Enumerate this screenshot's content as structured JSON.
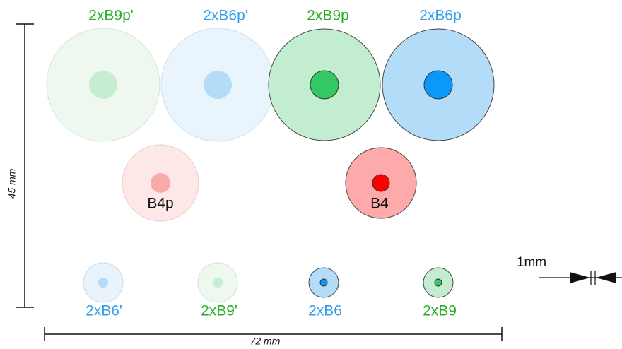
{
  "nodes": [
    {
      "label": "2xB9p'"
    },
    {
      "label": "2xB6p'"
    },
    {
      "label": "2xB9p"
    },
    {
      "label": "2xB6p"
    },
    {
      "label": "B4p"
    },
    {
      "label": "B4"
    },
    {
      "label": "2xB6'"
    },
    {
      "label": "2xB9'"
    },
    {
      "label": "2xB6"
    },
    {
      "label": "2xB9"
    }
  ],
  "scale": {
    "vertical": "45 mm",
    "horizontal": "72 mm",
    "gap": "1mm"
  }
}
